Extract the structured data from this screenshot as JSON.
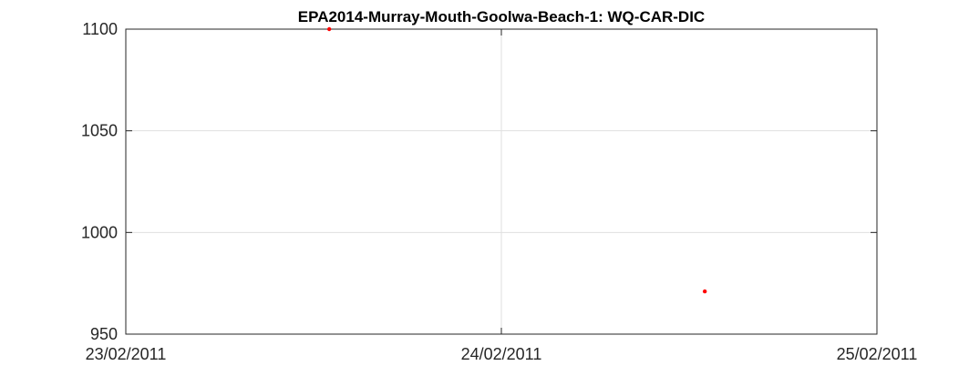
{
  "chart_data": {
    "type": "scatter",
    "title": "EPA2014-Murray-Mouth-Goolwa-Beach-1: WQ-CAR-DIC",
    "xlabel": "",
    "ylabel": "",
    "x_ticks": [
      "23/02/2011",
      "24/02/2011",
      "25/02/2011"
    ],
    "xlim": [
      "23/02/2011 00:00",
      "25/02/2011 00:00"
    ],
    "ylim": [
      950,
      1100
    ],
    "y_ticks": [
      950,
      1000,
      1050,
      1100
    ],
    "grid": true,
    "marker_color": "#ff0000",
    "series": [
      {
        "x": [
          "23/02/2011 13:00",
          "24/02/2011 13:00"
        ],
        "y": [
          1100,
          971
        ]
      }
    ]
  }
}
